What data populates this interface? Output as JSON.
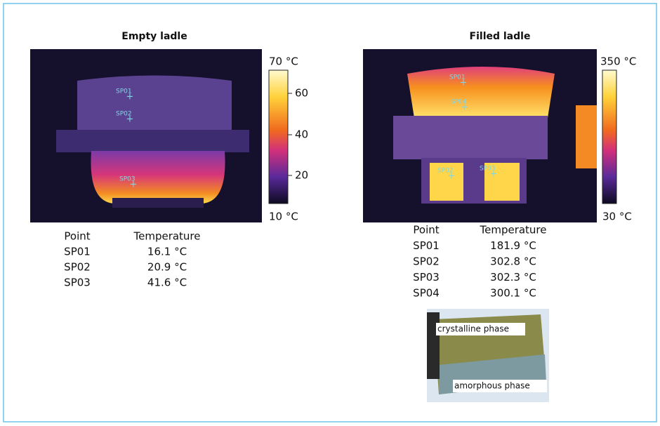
{
  "panels": [
    {
      "title": "Empty ladle",
      "scale": {
        "top": "70 °C",
        "bottom": "10 °C",
        "ticks": [
          "60",
          "40",
          "20"
        ]
      },
      "spots": [
        "SP01",
        "SP02",
        "SP03"
      ],
      "table": {
        "header": [
          "Point",
          "Temperature"
        ],
        "rows": [
          [
            "SP01",
            "16.1 °C"
          ],
          [
            "SP02",
            "20.9 °C"
          ],
          [
            "SP03",
            "41.6 °C"
          ]
        ]
      }
    },
    {
      "title": "Filled ladle",
      "scale": {
        "top": "350 °C",
        "bottom": "30 °C"
      },
      "spots": [
        "SP01",
        "SP04",
        "SP02",
        "SP03"
      ],
      "table": {
        "header": [
          "Point",
          "Temperature"
        ],
        "rows": [
          [
            "SP01",
            "181.9 °C"
          ],
          [
            "SP02",
            "302.8 °C"
          ],
          [
            "SP03",
            "302.3 °C"
          ],
          [
            "SP04",
            "300.1 °C"
          ]
        ]
      }
    }
  ],
  "sample": {
    "labels": [
      "crystalline phase",
      "amorphous phase"
    ]
  }
}
